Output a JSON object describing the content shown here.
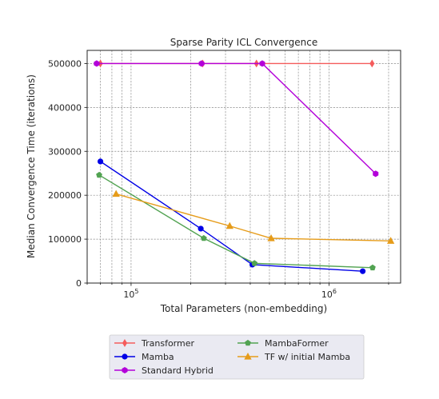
{
  "chart_data": {
    "type": "line",
    "title": "Sparse Parity ICL Convergence",
    "xlabel": "Total Parameters (non-embedding)",
    "ylabel": "Median Convergence Time (iterations)",
    "x_scale": "log",
    "xlim": [
      60000,
      2300000
    ],
    "ylim": [
      0,
      530000
    ],
    "x_ticks": [
      {
        "value": 100000,
        "base": "10",
        "exp": "5"
      },
      {
        "value": 1000000,
        "base": "10",
        "exp": "6"
      }
    ],
    "y_ticks": [
      {
        "value": 0,
        "label": "0"
      },
      {
        "value": 100000,
        "label": "100000"
      },
      {
        "value": 200000,
        "label": "200000"
      },
      {
        "value": 300000,
        "label": "300000"
      },
      {
        "value": 400000,
        "label": "400000"
      },
      {
        "value": 500000,
        "label": "500000"
      }
    ],
    "grid": true,
    "legend_position": "bottom",
    "series": [
      {
        "name": "Transformer",
        "color": "#f55c5c",
        "marker": "thin_diamond",
        "x": [
          70000,
          230000,
          430000,
          1650000
        ],
        "y": [
          500000,
          500000,
          500000,
          500000
        ]
      },
      {
        "name": "Mamba",
        "color": "#0000e6",
        "marker": "circle",
        "x": [
          70000,
          225000,
          410000,
          1480000
        ],
        "y": [
          277000,
          124000,
          42000,
          27000
        ]
      },
      {
        "name": "Standard Hybrid",
        "color": "#b300d9",
        "marker": "hexagon",
        "x": [
          67000,
          227000,
          460000,
          1720000
        ],
        "y": [
          500000,
          500000,
          500000,
          249000
        ]
      },
      {
        "name": "MambaFormer",
        "color": "#52a352",
        "marker": "pentagon",
        "x": [
          69000,
          233000,
          420000,
          1660000
        ],
        "y": [
          246000,
          102000,
          45000,
          35000
        ]
      },
      {
        "name": "TF w/ initial Mamba",
        "color": "#e69c1a",
        "marker": "triangle",
        "x": [
          84000,
          315000,
          510000,
          2050000
        ],
        "y": [
          203000,
          130000,
          102000,
          96000
        ]
      }
    ]
  }
}
